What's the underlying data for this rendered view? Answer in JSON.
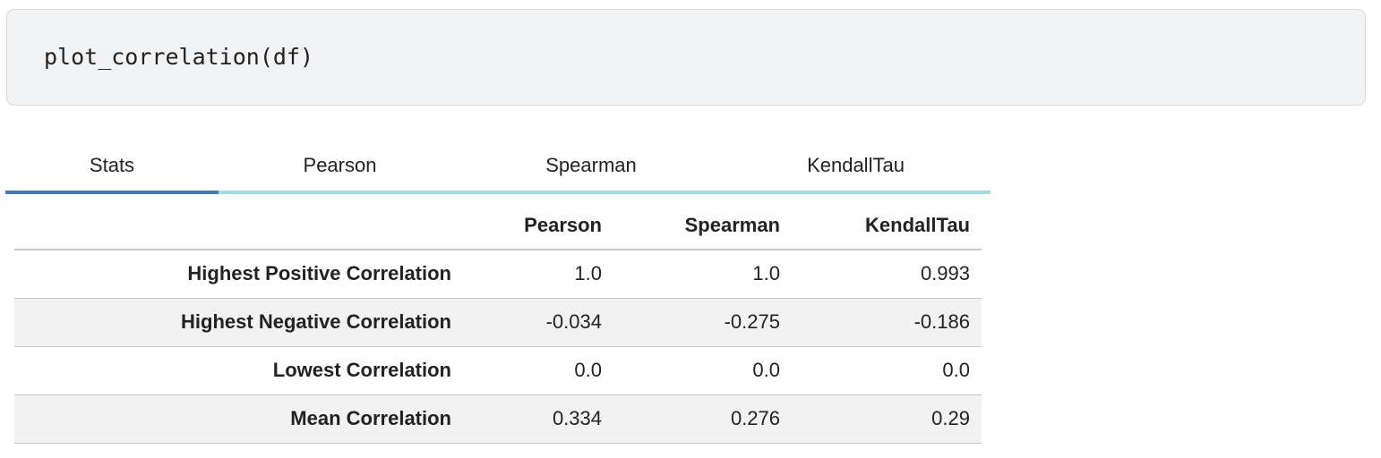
{
  "code": "plot_correlation(df)",
  "tabs": {
    "items": [
      "Stats",
      "Pearson",
      "Spearman",
      "KendallTau"
    ],
    "active": 0
  },
  "table": {
    "columns": [
      "Pearson",
      "Spearman",
      "KendallTau"
    ],
    "rows": [
      [
        "Highest Positive Correlation",
        "1.0",
        "1.0",
        "0.993"
      ],
      [
        "Highest Negative Correlation",
        "-0.034",
        "-0.275",
        "-0.186"
      ],
      [
        "Lowest Correlation",
        "0.0",
        "0.0",
        "0.0"
      ],
      [
        "Mean Correlation",
        "0.334",
        "0.276",
        "0.29"
      ]
    ]
  }
}
